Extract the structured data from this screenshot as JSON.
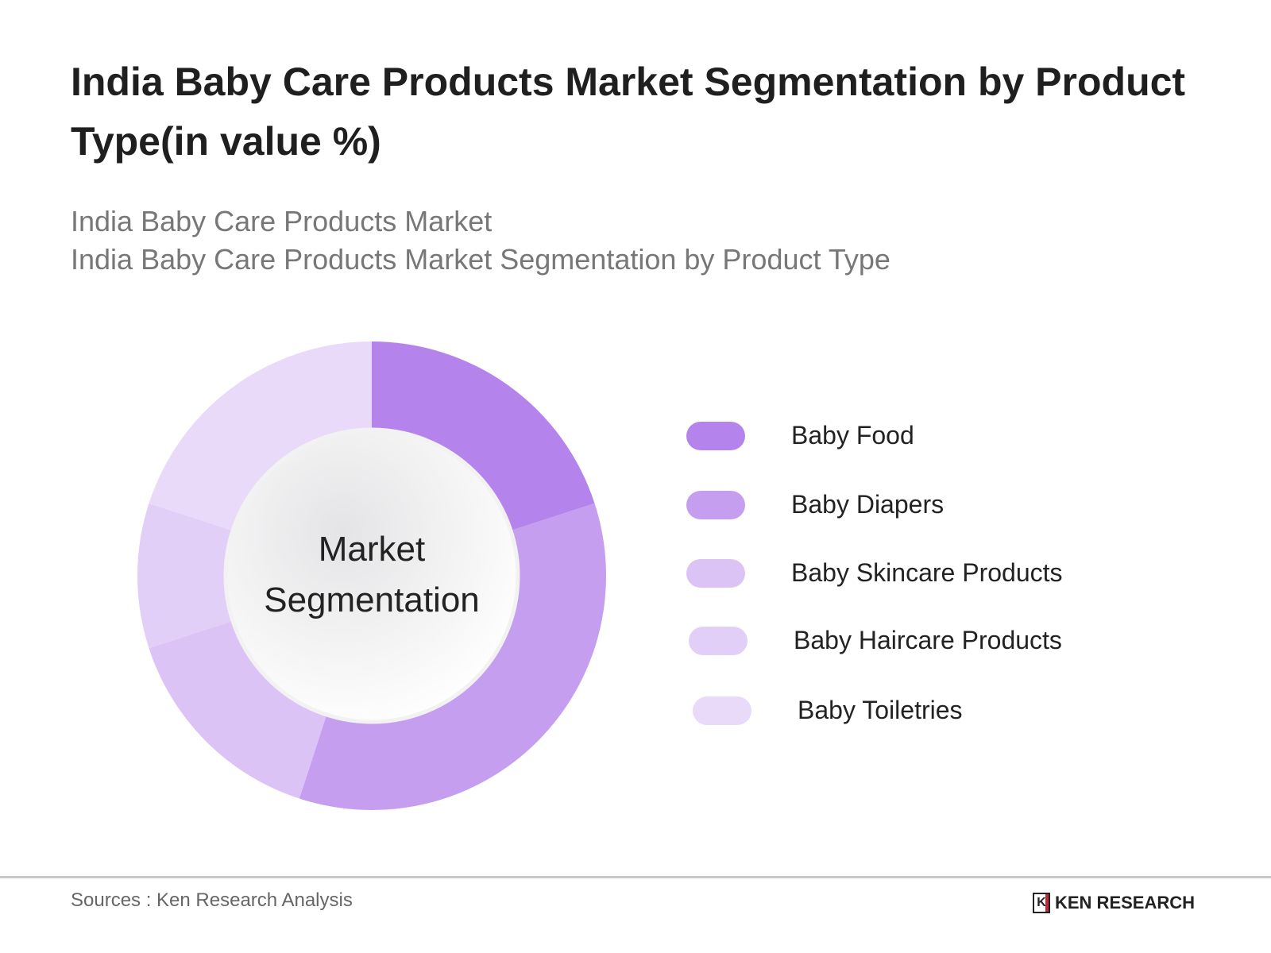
{
  "title": "India Baby Care Products Market Segmentation by Product Type(in value %)",
  "subtitle_1": "India Baby Care Products Market",
  "subtitle_2": "India Baby Care Products Market Segmentation by Product Type",
  "chart_data": {
    "type": "pie",
    "variant": "donut",
    "center_label": [
      "Market",
      "Segmentation"
    ],
    "categories": [
      "Baby Food",
      "Baby Diapers",
      "Baby Skincare Products",
      "Baby Haircare Products",
      "Baby Toiletries"
    ],
    "values": [
      20,
      35,
      15,
      10,
      20
    ],
    "colors": [
      "#b484ec",
      "#c59ef0",
      "#dcc3f6",
      "#e2cff7",
      "#e9dafa"
    ],
    "legend_position": "right"
  },
  "footer": {
    "source": "Sources : Ken Research Analysis",
    "logo_text": "KEN RESEARCH",
    "logo_mark": "K"
  }
}
